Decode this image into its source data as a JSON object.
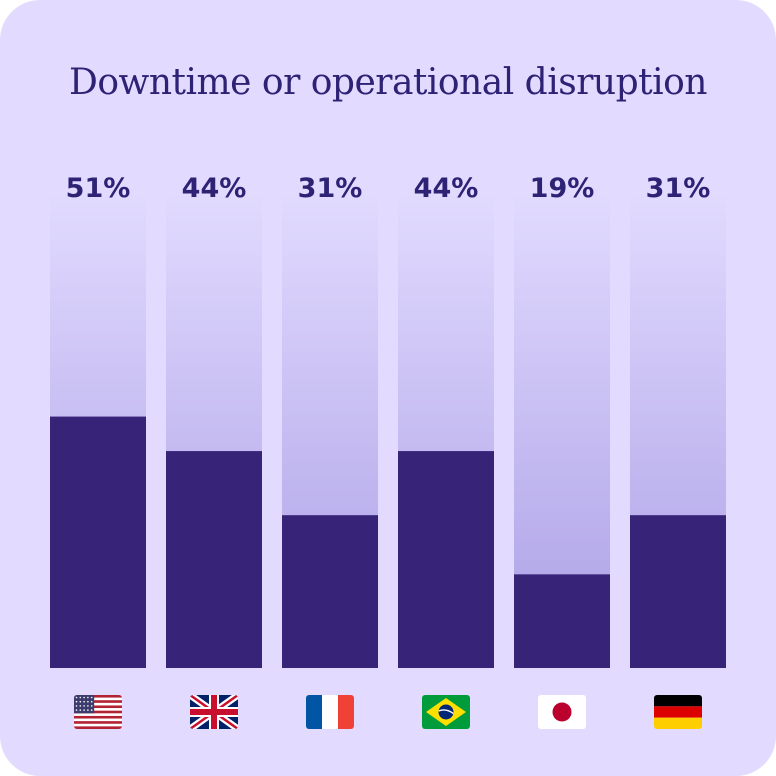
{
  "chart_data": {
    "type": "bar",
    "title": "Downtime or operational disruption",
    "categories": [
      "United States",
      "United Kingdom",
      "France",
      "Brazil",
      "Japan",
      "Germany"
    ],
    "category_icons": [
      "us-flag-icon",
      "uk-flag-icon",
      "france-flag-icon",
      "brazil-flag-icon",
      "japan-flag-icon",
      "germany-flag-icon"
    ],
    "values": [
      51,
      44,
      31,
      44,
      19,
      31
    ],
    "value_labels": [
      "51%",
      "44%",
      "31%",
      "44%",
      "19%",
      "31%"
    ],
    "ylim": [
      0,
      100
    ],
    "grid": false,
    "legend": "none",
    "colors": {
      "bar": "#372479",
      "track_top": "#e2dbff",
      "track_bottom": "#ab9fe5",
      "background": "#e2dbff",
      "text": "#2e2275"
    }
  }
}
